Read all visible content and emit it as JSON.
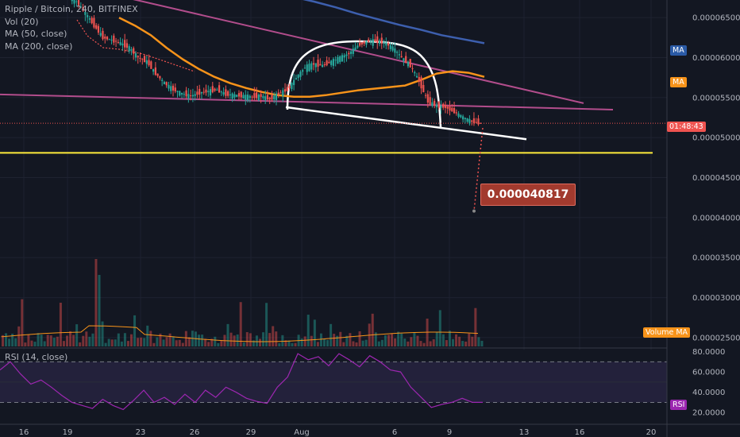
{
  "legend": {
    "title": "Ripple / Bitcoin, 240, BITFINEX",
    "vol": "Vol (20)",
    "ma50": "MA (50, close)",
    "ma200": "MA (200, close)",
    "rsi": "RSI (14, close)"
  },
  "tags": {
    "ma_top": "MA",
    "ma_bottom": "MA",
    "timer": "01:48:43",
    "volume_ma": "Volume MA",
    "rsi": "RSI",
    "target": "0.000040817"
  },
  "colors": {
    "background": "#131722",
    "up": "#26a69a",
    "down": "#ef5350",
    "ma50": "#f7931a",
    "ma200": "#3d5fae",
    "trend": "#b24d8c",
    "support": "#ffeb3b",
    "rsi": "#9c27b0"
  },
  "chart_data": {
    "type": "candlestick",
    "symbol": "Ripple / Bitcoin",
    "timeframe": "240",
    "exchange": "BITFINEX",
    "price_axis_ticks": [
      "0.0000650000",
      "0.0000600000",
      "0.0000550000",
      "0.0000500000",
      "0.0000450000",
      "0.0000400000",
      "0.0000350000",
      "0.0000300000",
      "0.0000250000"
    ],
    "rsi_axis_ticks": [
      "80.0000",
      "60.0000",
      "40.0000",
      "20.0000"
    ],
    "x_ticks": [
      "16",
      "19",
      "23",
      "26",
      "29",
      "Aug",
      "6",
      "9",
      "13",
      "16",
      "20"
    ],
    "price_range": [
      2.38e-05,
      6.72e-05
    ],
    "current_price": 5.18e-05,
    "target_price": 4.0817e-05,
    "support_level": 4.81e-05,
    "close_series": [
      6.75e-05,
      6.7e-05,
      6.55e-05,
      6.4e-05,
      6.25e-05,
      6.22e-05,
      6.18e-05,
      6.12e-05,
      6e-05,
      5.95e-05,
      5.8e-05,
      5.68e-05,
      5.6e-05,
      5.55e-05,
      5.52e-05,
      5.56e-05,
      5.58e-05,
      5.6e-05,
      5.54e-05,
      5.53e-05,
      5.52e-05,
      5.51e-05,
      5.52e-05,
      5.48e-05,
      5.55e-05,
      5.6e-05,
      5.75e-05,
      5.88e-05,
      5.92e-05,
      5.9e-05,
      5.95e-05,
      6e-05,
      6.05e-05,
      6.15e-05,
      6.2e-05,
      6.21e-05,
      6.19e-05,
      6.12e-05,
      6e-05,
      5.9e-05,
      5.7e-05,
      5.45e-05,
      5.4e-05,
      5.38e-05,
      5.32e-05,
      5.25e-05,
      5.2e-05,
      5.18e-05
    ],
    "ma50_series": [
      6.5e-05,
      6.4e-05,
      6.28e-05,
      6.12e-05,
      5.98e-05,
      5.86e-05,
      5.76e-05,
      5.68e-05,
      5.62e-05,
      5.57e-05,
      5.53e-05,
      5.51e-05,
      5.51e-05,
      5.53e-05,
      5.56e-05,
      5.59e-05,
      5.61e-05,
      5.63e-05,
      5.65e-05,
      5.72e-05,
      5.8e-05,
      5.83e-05,
      5.81e-05,
      5.76e-05
    ],
    "ma200_series": [
      6.9e-05,
      6.83e-05,
      6.76e-05,
      6.7e-05,
      6.63e-05,
      6.55e-05,
      6.48e-05,
      6.41e-05,
      6.35e-05,
      6.28e-05,
      6.23e-05,
      6.18e-05
    ],
    "rsi_series": [
      62,
      70,
      58,
      48,
      52,
      45,
      37,
      30,
      27,
      24,
      33,
      27,
      23,
      32,
      42,
      30,
      35,
      28,
      38,
      30,
      42,
      35,
      45,
      40,
      34,
      31,
      29,
      45,
      55,
      78,
      72,
      75,
      66,
      78,
      72,
      65,
      76,
      70,
      62,
      60,
      45,
      35,
      25,
      28,
      30,
      34,
      30,
      30
    ]
  }
}
